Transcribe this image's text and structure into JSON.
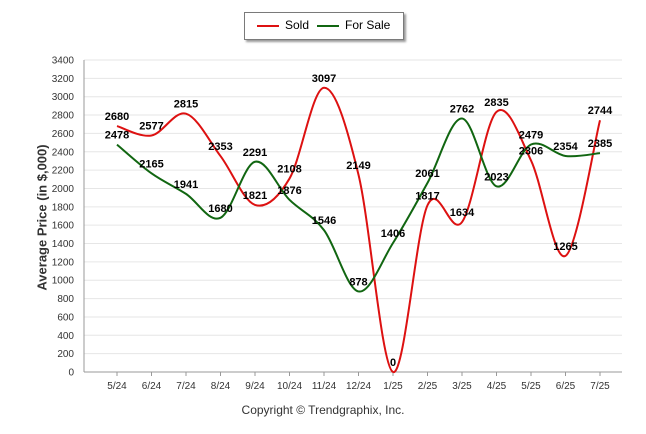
{
  "chart_data": {
    "type": "line",
    "categories": [
      "5/24",
      "6/24",
      "7/24",
      "8/24",
      "9/24",
      "10/24",
      "11/24",
      "12/24",
      "1/25",
      "2/25",
      "3/25",
      "4/25",
      "5/25",
      "6/25",
      "7/25"
    ],
    "series": [
      {
        "name": "Sold",
        "color": "#dd1111",
        "values": [
          2680,
          2577,
          2815,
          2353,
          1821,
          2108,
          3097,
          2149,
          0,
          1817,
          1634,
          2835,
          2306,
          1265,
          2744
        ]
      },
      {
        "name": "For Sale",
        "color": "#116611",
        "values": [
          2478,
          2165,
          1941,
          1680,
          2291,
          1876,
          1546,
          878,
          1406,
          2061,
          2762,
          2023,
          2479,
          2354,
          2385
        ]
      }
    ],
    "ylabel": "Average Price (in $,000)",
    "xlabel": "",
    "ylim": [
      0,
      3400
    ],
    "yticks": [
      0,
      200,
      400,
      600,
      800,
      1000,
      1200,
      1400,
      1600,
      1800,
      2000,
      2200,
      2400,
      2600,
      2800,
      3000,
      3200,
      3400
    ],
    "grid": true,
    "legend": "top-center",
    "credit": "Copyright © Trendgraphix, Inc."
  }
}
